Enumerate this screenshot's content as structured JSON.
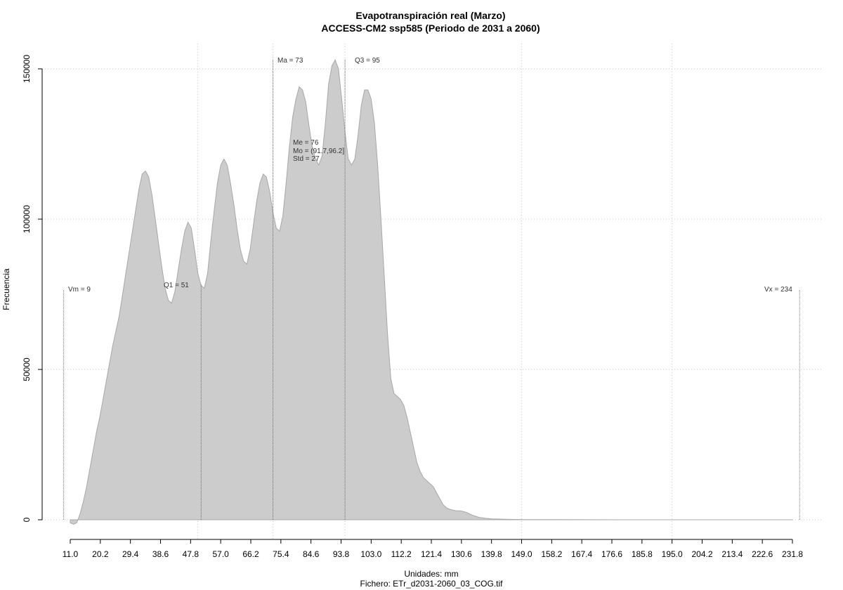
{
  "chart_data": {
    "type": "area",
    "title": "Evapotranspiración real (Marzo)",
    "subtitle": "ACCESS-CM2 ssp585 (Periodo de 2031 a 2060)",
    "xlabel": "Unidades: mm",
    "ylabel": "Frecuencia",
    "caption": "Fichero: ETr_d2031-2060_03_COG.tif",
    "xlim": [
      11.0,
      231.8
    ],
    "ylim": [
      0,
      150000
    ],
    "grid": true,
    "x_ticks": [
      "11.0",
      "20.2",
      "29.4",
      "38.6",
      "47.8",
      "57.0",
      "66.2",
      "75.4",
      "84.6",
      "93.8",
      "103.0",
      "112.2",
      "121.4",
      "130.6",
      "139.8",
      "149.0",
      "158.2",
      "167.4",
      "176.6",
      "185.8",
      "195.0",
      "204.2",
      "213.4",
      "222.6",
      "231.8"
    ],
    "y_ticks": [
      0,
      50000,
      100000,
      150000
    ],
    "y_tick_labels": [
      "0",
      "50000",
      "100000",
      "150000"
    ],
    "series": [
      {
        "x": [
          11,
          12,
          13,
          14,
          15,
          16,
          17,
          18,
          19,
          20,
          21,
          22,
          23,
          24,
          25,
          26,
          27,
          28,
          29,
          30,
          31,
          32,
          33,
          34,
          35,
          36,
          37,
          38,
          39,
          40,
          41,
          42,
          43,
          44,
          45,
          46,
          47,
          48,
          49,
          50,
          51,
          52,
          53,
          54,
          55,
          56,
          57,
          58,
          59,
          60,
          61,
          62,
          63,
          64,
          65,
          66,
          67,
          68,
          69,
          70,
          71,
          72,
          73,
          74,
          75,
          76,
          77,
          78,
          79,
          80,
          81,
          82,
          83,
          84,
          85,
          86,
          87,
          88,
          89,
          90,
          91,
          92,
          93,
          94,
          95,
          96,
          97,
          98,
          99,
          100,
          101,
          102,
          103,
          104,
          105,
          106,
          107,
          108,
          109,
          110,
          111,
          112,
          113,
          114,
          115,
          116,
          117,
          118,
          119,
          120,
          121,
          122,
          123,
          124,
          125,
          126,
          127,
          128,
          129,
          130,
          131,
          132,
          134,
          136,
          138,
          140,
          145,
          150,
          160,
          170,
          180,
          200,
          220,
          232
        ],
        "y": [
          -1000,
          -1500,
          -1000,
          2000,
          6000,
          11000,
          17000,
          23000,
          29000,
          34000,
          40000,
          46000,
          52000,
          58000,
          63000,
          68000,
          75000,
          82000,
          89000,
          96000,
          103000,
          110000,
          115000,
          116000,
          114000,
          108000,
          100000,
          92000,
          84000,
          77000,
          73000,
          72000,
          76000,
          83000,
          90000,
          96000,
          99000,
          97000,
          90000,
          82000,
          78000,
          77000,
          82000,
          93000,
          103000,
          112000,
          118000,
          120000,
          118000,
          112000,
          105000,
          97000,
          90000,
          86000,
          85000,
          90000,
          98000,
          106000,
          112000,
          115000,
          114000,
          109000,
          102000,
          97000,
          96000,
          101000,
          112000,
          124000,
          134000,
          140000,
          144000,
          143000,
          139000,
          131000,
          124000,
          120000,
          118000,
          121000,
          132000,
          145000,
          151000,
          153000,
          150000,
          140000,
          129000,
          120000,
          118000,
          120000,
          128000,
          138000,
          143000,
          143000,
          140000,
          132000,
          118000,
          100000,
          81000,
          62000,
          47000,
          42000,
          41000,
          40000,
          38000,
          34000,
          29000,
          24000,
          19000,
          16000,
          14000,
          13000,
          12000,
          11000,
          9000,
          7000,
          5000,
          4000,
          3500,
          3200,
          3000,
          3000,
          2800,
          2500,
          1500,
          800,
          500,
          300,
          150,
          80,
          40,
          20,
          10,
          5,
          2,
          0
        ]
      }
    ],
    "annotations": {
      "vm": {
        "label": "Vm = 9",
        "x": 9
      },
      "q1": {
        "label": "Q1 = 51",
        "x": 51
      },
      "ma": {
        "label": "Ma = 73",
        "x": 73
      },
      "q3": {
        "label": "Q3 = 95",
        "x": 95
      },
      "vx": {
        "label": "Vx = 234",
        "x": 234
      },
      "me": "Me = 76",
      "mo": "Mo = (91.7,96.2]",
      "std": "Std = 27"
    },
    "colors": {
      "area": "#cccccc",
      "outline": "#a8a8a8",
      "grid": "#c8c8c8",
      "marker": "#555555"
    }
  }
}
